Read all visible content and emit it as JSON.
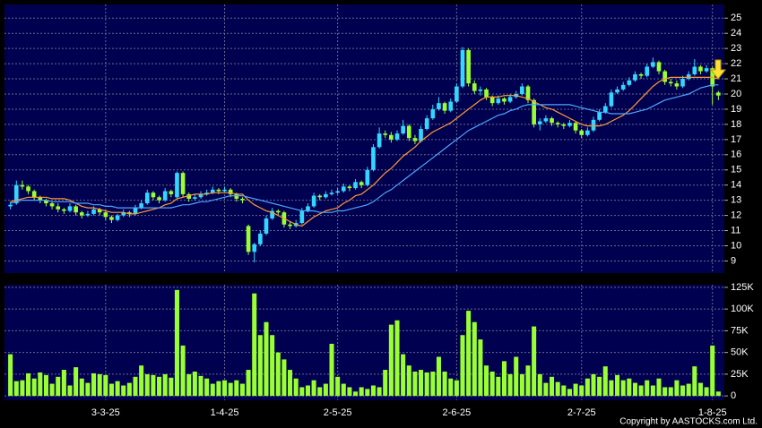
{
  "chart_data": [
    {
      "type": "candlestick",
      "up_color": "#33d6ff",
      "down_color": "#99ff33",
      "ohlc": [
        [
          12.6,
          12.9,
          12.4,
          12.7
        ],
        [
          12.8,
          14.3,
          12.7,
          14.0
        ],
        [
          14.0,
          14.3,
          13.7,
          13.9
        ],
        [
          13.9,
          14.0,
          13.4,
          13.6
        ],
        [
          13.6,
          13.7,
          13.0,
          13.2
        ],
        [
          13.2,
          13.3,
          12.8,
          13.0
        ],
        [
          13.0,
          13.1,
          12.6,
          12.8
        ],
        [
          12.8,
          12.9,
          12.4,
          12.6
        ],
        [
          12.6,
          12.8,
          12.2,
          12.4
        ],
        [
          12.4,
          12.5,
          12.1,
          12.3
        ],
        [
          12.3,
          12.8,
          12.2,
          12.6
        ],
        [
          12.6,
          12.7,
          12.0,
          12.2
        ],
        [
          12.2,
          12.3,
          11.8,
          12.0
        ],
        [
          12.0,
          12.3,
          11.9,
          12.1
        ],
        [
          12.1,
          12.6,
          12.0,
          12.4
        ],
        [
          12.4,
          12.5,
          12.0,
          12.2
        ],
        [
          12.2,
          12.3,
          11.7,
          11.9
        ],
        [
          11.9,
          12.0,
          11.5,
          11.7
        ],
        [
          11.7,
          12.1,
          11.6,
          12.0
        ],
        [
          12.0,
          12.4,
          11.9,
          12.2
        ],
        [
          12.2,
          12.3,
          11.9,
          12.1
        ],
        [
          12.1,
          12.7,
          12.0,
          12.5
        ],
        [
          12.5,
          13.0,
          12.4,
          12.8
        ],
        [
          12.8,
          13.7,
          12.7,
          13.5
        ],
        [
          13.5,
          13.6,
          13.0,
          13.2
        ],
        [
          13.2,
          13.3,
          12.8,
          13.0
        ],
        [
          13.0,
          13.8,
          12.9,
          13.6
        ],
        [
          13.6,
          13.7,
          13.2,
          13.4
        ],
        [
          13.2,
          14.9,
          13.1,
          14.8
        ],
        [
          14.8,
          14.9,
          13.2,
          13.4
        ],
        [
          13.4,
          13.5,
          12.9,
          13.1
        ],
        [
          13.1,
          13.4,
          13.0,
          13.2
        ],
        [
          13.2,
          13.6,
          13.1,
          13.4
        ],
        [
          13.4,
          13.7,
          13.3,
          13.5
        ],
        [
          13.5,
          13.9,
          13.4,
          13.7
        ],
        [
          13.7,
          13.8,
          13.4,
          13.6
        ],
        [
          13.6,
          13.9,
          13.5,
          13.7
        ],
        [
          13.7,
          13.8,
          13.2,
          13.4
        ],
        [
          13.4,
          13.5,
          12.9,
          13.1
        ],
        [
          13.1,
          13.2,
          12.8,
          13.0
        ],
        [
          11.3,
          11.4,
          9.4,
          9.6
        ],
        [
          9.6,
          10.2,
          8.9,
          10.1
        ],
        [
          10.1,
          11.0,
          10.0,
          10.8
        ],
        [
          10.8,
          12.0,
          10.7,
          11.8
        ],
        [
          11.8,
          12.5,
          11.7,
          12.3
        ],
        [
          12.3,
          12.4,
          12.0,
          12.2
        ],
        [
          12.2,
          12.3,
          11.2,
          11.4
        ],
        [
          11.4,
          11.6,
          11.1,
          11.3
        ],
        [
          11.3,
          11.7,
          11.2,
          11.5
        ],
        [
          11.5,
          12.5,
          11.4,
          12.3
        ],
        [
          12.3,
          12.8,
          12.2,
          12.6
        ],
        [
          12.6,
          13.5,
          12.5,
          13.3
        ],
        [
          13.3,
          13.4,
          13.0,
          13.2
        ],
        [
          13.2,
          13.6,
          13.1,
          13.4
        ],
        [
          13.4,
          13.7,
          13.3,
          13.5
        ],
        [
          13.5,
          13.8,
          13.4,
          13.6
        ],
        [
          13.6,
          14.1,
          13.5,
          13.9
        ],
        [
          13.9,
          14.0,
          13.6,
          13.8
        ],
        [
          13.8,
          14.4,
          13.7,
          14.2
        ],
        [
          14.2,
          14.3,
          13.8,
          14.0
        ],
        [
          14.0,
          15.2,
          13.9,
          15.0
        ],
        [
          15.0,
          16.7,
          14.9,
          16.5
        ],
        [
          16.5,
          17.8,
          16.4,
          17.4
        ],
        [
          17.4,
          17.6,
          17.1,
          17.3
        ],
        [
          17.3,
          17.5,
          16.8,
          17.0
        ],
        [
          17.0,
          17.6,
          16.9,
          17.4
        ],
        [
          17.4,
          18.3,
          17.3,
          17.9
        ],
        [
          17.9,
          18.0,
          16.9,
          17.1
        ],
        [
          17.1,
          17.3,
          16.7,
          16.9
        ],
        [
          16.9,
          17.9,
          16.8,
          17.7
        ],
        [
          17.7,
          18.6,
          17.6,
          18.4
        ],
        [
          18.4,
          19.3,
          18.3,
          19.0
        ],
        [
          19.0,
          19.8,
          18.9,
          19.4
        ],
        [
          19.4,
          19.5,
          18.7,
          18.9
        ],
        [
          18.9,
          19.7,
          18.8,
          19.5
        ],
        [
          19.5,
          20.7,
          19.4,
          20.5
        ],
        [
          20.5,
          23.1,
          20.4,
          22.9
        ],
        [
          22.9,
          23.0,
          20.5,
          20.7
        ],
        [
          20.7,
          20.9,
          20.0,
          20.2
        ],
        [
          20.2,
          20.5,
          19.9,
          20.3
        ],
        [
          20.3,
          20.4,
          19.6,
          19.8
        ],
        [
          19.8,
          19.9,
          19.2,
          19.4
        ],
        [
          19.4,
          19.9,
          19.3,
          19.7
        ],
        [
          19.7,
          19.8,
          19.3,
          19.5
        ],
        [
          19.5,
          20.0,
          19.4,
          19.8
        ],
        [
          19.8,
          20.2,
          19.7,
          20.0
        ],
        [
          20.0,
          20.7,
          19.9,
          20.5
        ],
        [
          20.5,
          20.6,
          19.4,
          19.6
        ],
        [
          19.6,
          19.7,
          17.8,
          18.0
        ],
        [
          18.0,
          18.4,
          17.6,
          18.2
        ],
        [
          18.2,
          18.6,
          18.1,
          18.4
        ],
        [
          18.4,
          18.5,
          17.9,
          18.1
        ],
        [
          18.1,
          18.2,
          17.8,
          18.0
        ],
        [
          18.0,
          18.1,
          17.7,
          17.9
        ],
        [
          17.9,
          18.3,
          17.8,
          18.1
        ],
        [
          18.1,
          18.2,
          17.4,
          17.6
        ],
        [
          17.6,
          17.7,
          17.1,
          17.3
        ],
        [
          17.3,
          17.8,
          17.2,
          17.6
        ],
        [
          17.6,
          18.5,
          17.5,
          18.3
        ],
        [
          18.3,
          19.0,
          18.2,
          18.8
        ],
        [
          18.8,
          19.4,
          18.7,
          19.2
        ],
        [
          19.2,
          20.3,
          19.1,
          20.1
        ],
        [
          20.1,
          20.5,
          20.0,
          20.3
        ],
        [
          20.3,
          20.8,
          20.2,
          20.6
        ],
        [
          20.6,
          21.1,
          20.5,
          20.9
        ],
        [
          20.9,
          21.5,
          20.8,
          21.3
        ],
        [
          21.3,
          21.4,
          21.0,
          21.2
        ],
        [
          21.2,
          22.0,
          21.1,
          21.8
        ],
        [
          21.8,
          22.4,
          21.7,
          22.1
        ],
        [
          22.1,
          22.2,
          21.3,
          21.5
        ],
        [
          21.5,
          21.6,
          20.6,
          20.8
        ],
        [
          20.8,
          21.0,
          20.5,
          20.7
        ],
        [
          20.7,
          20.9,
          20.3,
          20.5
        ],
        [
          20.5,
          21.2,
          20.4,
          21.0
        ],
        [
          21.0,
          21.5,
          20.9,
          21.3
        ],
        [
          21.3,
          22.3,
          21.2,
          21.8
        ],
        [
          21.8,
          21.9,
          21.3,
          21.5
        ],
        [
          21.5,
          21.9,
          21.4,
          21.7
        ],
        [
          21.7,
          21.8,
          19.3,
          20.5
        ],
        [
          20.1,
          20.2,
          19.6,
          19.9
        ]
      ],
      "lines": [
        {
          "color": "#ff9933",
          "values": [
            12.9,
            13.0,
            13.1,
            13.2,
            13.2,
            13.2,
            13.2,
            13.1,
            13.1,
            13.1,
            13.0,
            12.8,
            12.6,
            12.5,
            12.5,
            12.4,
            12.3,
            12.2,
            12.2,
            12.2,
            12.1,
            12.1,
            12.2,
            12.3,
            12.4,
            12.5,
            12.7,
            12.8,
            13.1,
            13.2,
            13.3,
            13.4,
            13.4,
            13.4,
            13.5,
            13.5,
            13.5,
            13.5,
            13.4,
            13.4,
            13.0,
            12.7,
            12.5,
            12.3,
            12.2,
            12.0,
            11.8,
            11.6,
            11.4,
            11.3,
            11.6,
            11.9,
            12.1,
            12.3,
            12.4,
            12.5,
            12.8,
            13.0,
            13.3,
            13.4,
            13.7,
            14.0,
            14.4,
            14.8,
            15.1,
            15.5,
            15.9,
            16.2,
            16.5,
            16.9,
            17.2,
            17.5,
            17.7,
            17.9,
            18.1,
            18.4,
            18.7,
            19.0,
            19.3,
            19.6,
            19.8,
            19.8,
            19.8,
            19.9,
            19.9,
            19.9,
            19.8,
            19.7,
            19.5,
            19.3,
            19.1,
            19.0,
            18.8,
            18.6,
            18.4,
            18.2,
            18.0,
            17.9,
            17.9,
            17.9,
            18.0,
            18.2,
            18.4,
            18.6,
            18.9,
            19.3,
            19.7,
            20.1,
            20.5,
            20.8,
            21.0,
            21.1,
            21.1,
            21.1,
            21.1,
            21.1,
            21.1,
            21.1,
            21.1,
            21.0
          ]
        },
        {
          "color": "#4da6ff",
          "values": [
            12.8,
            12.9,
            13.0,
            13.0,
            13.0,
            13.0,
            13.0,
            12.9,
            12.9,
            12.9,
            12.9,
            12.8,
            12.8,
            12.8,
            12.7,
            12.7,
            12.6,
            12.6,
            12.5,
            12.5,
            12.5,
            12.5,
            12.5,
            12.5,
            12.5,
            12.5,
            12.5,
            12.5,
            12.6,
            12.7,
            12.7,
            12.8,
            12.9,
            12.9,
            13.0,
            13.1,
            13.2,
            13.3,
            13.3,
            13.3,
            13.2,
            13.1,
            13.0,
            12.9,
            12.8,
            12.7,
            12.6,
            12.5,
            12.4,
            12.3,
            12.3,
            12.3,
            12.2,
            12.2,
            12.2,
            12.3,
            12.3,
            12.4,
            12.5,
            12.6,
            12.7,
            12.9,
            13.2,
            13.5,
            13.7,
            14.0,
            14.3,
            14.6,
            14.9,
            15.2,
            15.5,
            15.8,
            16.1,
            16.4,
            16.7,
            17.0,
            17.3,
            17.6,
            17.8,
            18.0,
            18.2,
            18.4,
            18.6,
            18.7,
            18.9,
            19.0,
            19.2,
            19.3,
            19.3,
            19.3,
            19.3,
            19.3,
            19.3,
            19.3,
            19.3,
            19.2,
            19.1,
            19.0,
            18.9,
            18.8,
            18.8,
            18.7,
            18.7,
            18.7,
            18.7,
            18.8,
            18.9,
            19.0,
            19.2,
            19.4,
            19.6,
            19.7,
            19.8,
            19.9,
            20.0,
            20.2,
            20.4,
            20.5,
            20.6,
            20.6
          ]
        }
      ],
      "xlim": [
        -1,
        120
      ],
      "xticks": [
        16,
        36,
        55,
        75,
        96,
        118
      ],
      "ylim": [
        8.2,
        25.9
      ],
      "yticks": [
        9,
        10,
        11,
        12,
        13,
        14,
        15,
        16,
        17,
        18,
        19,
        20,
        21,
        22,
        23,
        24,
        25
      ],
      "grid": true
    },
    {
      "type": "bar",
      "color": "#99ff33",
      "values": [
        48000,
        17000,
        18000,
        26000,
        20000,
        27000,
        24000,
        14000,
        22000,
        30000,
        12000,
        33000,
        20000,
        15000,
        26000,
        25000,
        24000,
        14000,
        17000,
        12000,
        15000,
        22000,
        35000,
        25000,
        24000,
        22000,
        25000,
        21000,
        122000,
        58000,
        25000,
        28000,
        23000,
        20000,
        14000,
        17000,
        18000,
        15000,
        18000,
        14000,
        30000,
        118000,
        70000,
        85000,
        70000,
        50000,
        42000,
        30000,
        20000,
        10000,
        12000,
        18000,
        10000,
        14000,
        60000,
        22000,
        14000,
        10000,
        5000,
        10000,
        8000,
        12000,
        10000,
        30000,
        82000,
        87000,
        48000,
        35000,
        28000,
        30000,
        27000,
        28000,
        45000,
        28000,
        20000,
        18000,
        70000,
        98000,
        85000,
        65000,
        35000,
        28000,
        22000,
        40000,
        25000,
        45000,
        25000,
        35000,
        80000,
        25000,
        15000,
        22000,
        16000,
        12000,
        8000,
        14000,
        12000,
        20000,
        25000,
        22000,
        34000,
        18000,
        24000,
        18000,
        20000,
        15000,
        12000,
        18000,
        12000,
        20000,
        10000,
        10000,
        18000,
        12000,
        14000,
        34000,
        15000,
        10000,
        58000,
        5000
      ],
      "xlim": [
        -1,
        120
      ],
      "xticks": [
        {
          "value": 16,
          "label": "3-3-25"
        },
        {
          "value": 36,
          "label": "1-4-25"
        },
        {
          "value": 55,
          "label": "2-5-25"
        },
        {
          "value": 75,
          "label": "2-6-25"
        },
        {
          "value": 96,
          "label": "2-7-25"
        },
        {
          "value": 118,
          "label": "1-8-25"
        }
      ],
      "ylim": [
        -5000,
        128000
      ],
      "yticks": [
        0,
        {
          "value": 25000,
          "label": "25K"
        },
        {
          "value": 50000,
          "label": "50K"
        },
        {
          "value": 75000,
          "label": "75K"
        },
        {
          "value": 100000,
          "label": "100K"
        },
        {
          "value": 125000,
          "label": "125K"
        }
      ],
      "grid": true
    }
  ],
  "copyright": "Copyright by AASTOCKS.com Ltd."
}
